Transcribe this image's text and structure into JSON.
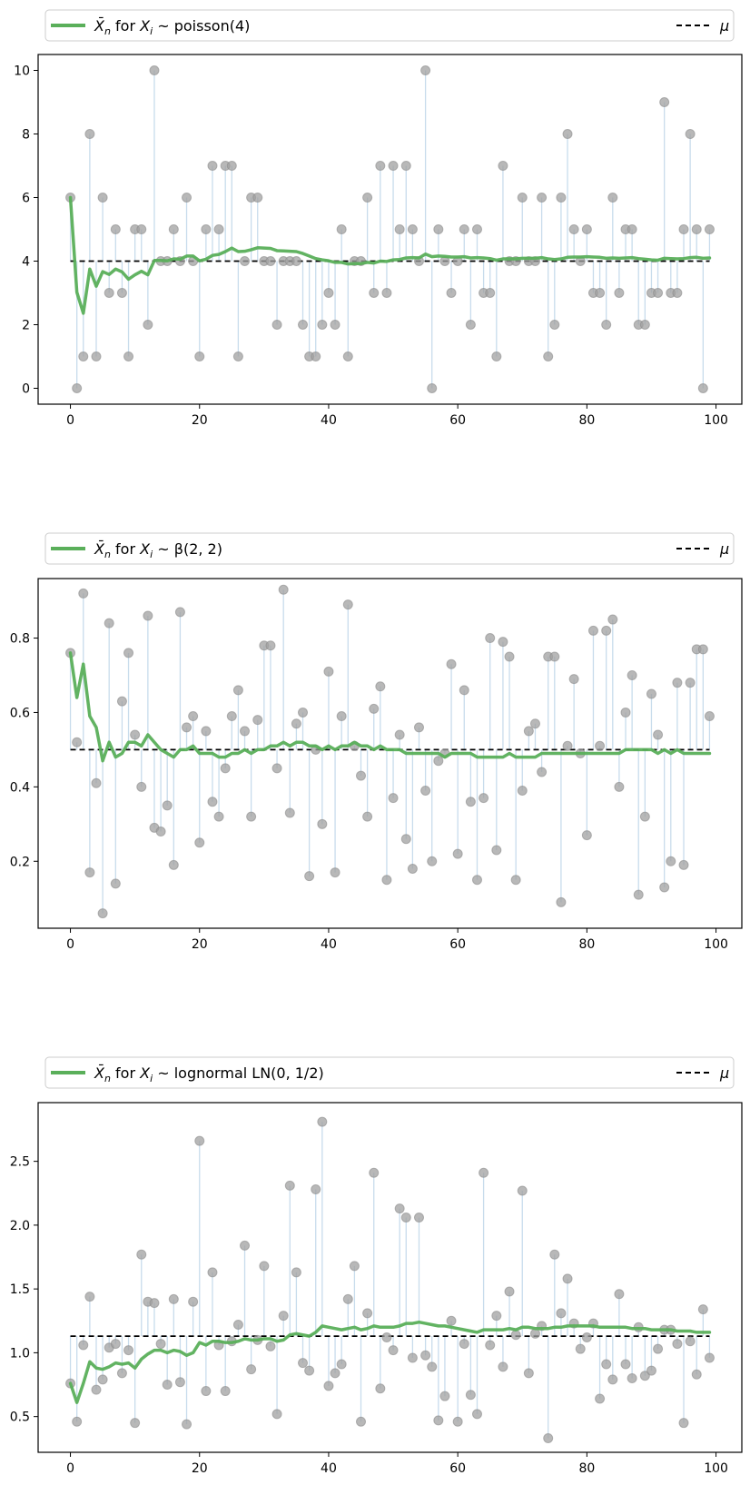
{
  "chart_data": [
    {
      "type": "scatter",
      "title": "",
      "xlabel": "",
      "ylabel": "",
      "legend": {
        "placement": "top",
        "entries": [
          {
            "name": "sample_mean",
            "math": "X̄",
            "sub": "n",
            "pre": " for ",
            "var": "X",
            "vsub": "i",
            "dist": "poisson(4)"
          },
          {
            "name": "mu",
            "label": "μ"
          }
        ]
      },
      "xlim": [
        -5,
        104
      ],
      "ylim": [
        -0.5,
        10.5
      ],
      "xticks": [
        0,
        20,
        40,
        60,
        80,
        100
      ],
      "yticks": [
        0,
        2,
        4,
        6,
        8,
        10
      ],
      "tick_format": 0,
      "mu": 4,
      "colors": {
        "mean_line": "#5aaf5a",
        "points": "#a0a0a0",
        "stems": "#c8dcec",
        "mu_line": "#000000"
      },
      "samples": [
        6,
        0,
        1,
        8,
        1,
        6,
        3,
        5,
        3,
        1,
        5,
        5,
        2,
        10,
        4,
        4,
        5,
        4,
        6,
        4,
        1,
        5,
        7,
        5,
        7,
        7,
        1,
        4,
        6,
        6,
        4,
        4,
        2,
        4,
        4,
        4,
        2,
        1,
        1,
        2,
        3,
        2,
        5,
        1,
        4,
        4,
        6,
        3,
        7,
        3,
        7,
        5,
        7,
        5,
        4,
        10,
        0,
        5,
        4,
        3,
        4,
        5,
        2,
        5,
        3,
        3,
        1,
        7,
        4,
        4,
        6,
        4,
        4,
        6,
        1,
        2,
        6,
        8,
        5,
        4,
        5,
        3,
        3,
        2,
        6,
        3,
        5,
        5,
        2,
        2,
        3,
        3,
        9,
        3,
        3,
        5,
        8,
        5,
        0,
        5
      ],
      "running_mean": [
        6,
        3.02,
        2.36,
        3.75,
        3.21,
        3.67,
        3.58,
        3.75,
        3.66,
        3.43,
        3.57,
        3.68,
        3.57,
        4.02,
        4.02,
        4.01,
        4.07,
        4.06,
        4.16,
        4.16,
        4.01,
        4.06,
        4.18,
        4.21,
        4.3,
        4.41,
        4.3,
        4.31,
        4.36,
        4.42,
        4.41,
        4.4,
        4.33,
        4.32,
        4.31,
        4.3,
        4.24,
        4.16,
        4.08,
        4.04,
        4.01,
        3.96,
        3.96,
        3.91,
        3.92,
        3.92,
        3.96,
        3.94,
        4.0,
        3.99,
        4.04,
        4.05,
        4.1,
        4.11,
        4.1,
        4.22,
        4.14,
        4.16,
        4.15,
        4.13,
        4.13,
        4.14,
        4.1,
        4.11,
        4.1,
        4.08,
        4.03,
        4.07,
        4.07,
        4.07,
        4.09,
        4.09,
        4.09,
        4.11,
        4.07,
        4.05,
        4.07,
        4.12,
        4.13,
        4.13,
        4.14,
        4.13,
        4.12,
        4.09,
        4.1,
        4.09,
        4.1,
        4.11,
        4.08,
        4.06,
        4.04,
        4.03,
        4.09,
        4.08,
        4.07,
        4.08,
        4.11,
        4.12,
        4.09,
        4.1
      ]
    },
    {
      "type": "scatter",
      "title": "",
      "xlabel": "",
      "ylabel": "",
      "legend": {
        "placement": "top",
        "entries": [
          {
            "name": "sample_mean",
            "math": "X̄",
            "sub": "n",
            "pre": " for ",
            "var": "X",
            "vsub": "i",
            "dist": "β(2, 2)"
          },
          {
            "name": "mu",
            "label": "μ"
          }
        ]
      },
      "xlim": [
        -5,
        104
      ],
      "ylim": [
        0.02,
        0.96
      ],
      "xticks": [
        0,
        20,
        40,
        60,
        80,
        100
      ],
      "yticks": [
        0.2,
        0.4,
        0.6,
        0.8
      ],
      "tick_format": 1,
      "mu": 0.5,
      "colors": {
        "mean_line": "#5aaf5a",
        "points": "#a0a0a0",
        "stems": "#c8dcec",
        "mu_line": "#000000"
      },
      "samples": [
        0.76,
        0.52,
        0.92,
        0.17,
        0.41,
        0.06,
        0.84,
        0.14,
        0.63,
        0.76,
        0.54,
        0.4,
        0.86,
        0.29,
        0.28,
        0.35,
        0.19,
        0.87,
        0.56,
        0.59,
        0.25,
        0.55,
        0.36,
        0.32,
        0.45,
        0.59,
        0.66,
        0.55,
        0.32,
        0.58,
        0.78,
        0.78,
        0.45,
        0.93,
        0.33,
        0.57,
        0.6,
        0.16,
        0.5,
        0.3,
        0.71,
        0.17,
        0.59,
        0.89,
        0.51,
        0.43,
        0.32,
        0.61,
        0.67,
        0.15,
        0.37,
        0.54,
        0.26,
        0.18,
        0.56,
        0.39,
        0.2,
        0.47,
        0.49,
        0.73,
        0.22,
        0.66,
        0.36,
        0.15,
        0.37,
        0.8,
        0.23,
        0.79,
        0.75,
        0.15,
        0.39,
        0.55,
        0.57,
        0.44,
        0.75,
        0.75,
        0.09,
        0.51,
        0.69,
        0.49,
        0.27,
        0.82,
        0.51,
        0.82,
        0.85,
        0.4,
        0.6,
        0.7,
        0.11,
        0.32,
        0.65,
        0.54,
        0.13,
        0.2,
        0.68,
        0.19,
        0.68,
        0.77,
        0.77,
        0.59
      ],
      "running_mean": [
        0.76,
        0.64,
        0.73,
        0.59,
        0.56,
        0.47,
        0.52,
        0.48,
        0.49,
        0.52,
        0.52,
        0.51,
        0.54,
        0.52,
        0.5,
        0.49,
        0.48,
        0.5,
        0.5,
        0.51,
        0.49,
        0.49,
        0.49,
        0.48,
        0.48,
        0.49,
        0.49,
        0.5,
        0.49,
        0.5,
        0.5,
        0.51,
        0.51,
        0.52,
        0.51,
        0.52,
        0.52,
        0.51,
        0.51,
        0.5,
        0.51,
        0.5,
        0.51,
        0.51,
        0.52,
        0.51,
        0.51,
        0.5,
        0.51,
        0.5,
        0.5,
        0.5,
        0.49,
        0.49,
        0.49,
        0.49,
        0.49,
        0.49,
        0.48,
        0.49,
        0.49,
        0.49,
        0.49,
        0.48,
        0.48,
        0.48,
        0.48,
        0.48,
        0.49,
        0.48,
        0.48,
        0.48,
        0.48,
        0.49,
        0.49,
        0.49,
        0.49,
        0.49,
        0.49,
        0.49,
        0.49,
        0.49,
        0.49,
        0.49,
        0.49,
        0.49,
        0.5,
        0.5,
        0.5,
        0.5,
        0.5,
        0.49,
        0.5,
        0.49,
        0.5,
        0.49,
        0.49,
        0.49,
        0.49,
        0.49
      ]
    },
    {
      "type": "scatter",
      "title": "",
      "xlabel": "",
      "ylabel": "",
      "legend": {
        "placement": "top",
        "entries": [
          {
            "name": "sample_mean",
            "math": "X̄",
            "sub": "n",
            "pre": " for ",
            "var": "X",
            "vsub": "i",
            "dist": "lognormal LN(0, 1/2)"
          },
          {
            "name": "mu",
            "label": "μ"
          }
        ]
      },
      "xlim": [
        -5,
        104
      ],
      "ylim": [
        0.22,
        2.96
      ],
      "xticks": [
        0,
        20,
        40,
        60,
        80,
        100
      ],
      "yticks": [
        0.5,
        1.0,
        1.5,
        2.0,
        2.5
      ],
      "tick_format": 1,
      "mu": 1.13,
      "colors": {
        "mean_line": "#5aaf5a",
        "points": "#a0a0a0",
        "stems": "#c8dcec",
        "mu_line": "#000000"
      },
      "samples": [
        0.76,
        0.46,
        1.06,
        1.44,
        0.71,
        0.79,
        1.04,
        1.07,
        0.84,
        1.02,
        0.45,
        1.77,
        1.4,
        1.39,
        1.07,
        0.75,
        1.42,
        0.77,
        0.44,
        1.4,
        2.66,
        0.7,
        1.63,
        1.06,
        0.7,
        1.09,
        1.22,
        1.84,
        0.87,
        1.1,
        1.68,
        1.05,
        0.52,
        1.29,
        2.31,
        1.63,
        0.92,
        0.86,
        2.28,
        2.81,
        0.74,
        0.84,
        0.91,
        1.42,
        1.68,
        0.46,
        1.31,
        2.41,
        0.72,
        1.12,
        1.02,
        2.13,
        2.06,
        0.96,
        2.06,
        0.98,
        0.89,
        0.47,
        0.66,
        1.25,
        0.46,
        1.07,
        0.67,
        0.52,
        2.41,
        1.06,
        1.29,
        0.89,
        1.48,
        1.14,
        2.27,
        0.84,
        1.15,
        1.21,
        0.33,
        1.77,
        1.31,
        1.58,
        1.23,
        1.03,
        1.12,
        1.23,
        0.64,
        0.91,
        0.79,
        1.46,
        0.91,
        0.8,
        1.2,
        0.82,
        0.86,
        1.03,
        1.18,
        1.18,
        1.07,
        0.45,
        1.09,
        0.83,
        1.34,
        0.96
      ],
      "running_mean": [
        0.76,
        0.61,
        0.76,
        0.93,
        0.88,
        0.87,
        0.89,
        0.92,
        0.91,
        0.92,
        0.88,
        0.95,
        0.99,
        1.02,
        1.02,
        1.0,
        1.02,
        1.01,
        0.98,
        1.0,
        1.08,
        1.06,
        1.09,
        1.09,
        1.08,
        1.08,
        1.09,
        1.11,
        1.1,
        1.1,
        1.11,
        1.11,
        1.09,
        1.1,
        1.14,
        1.15,
        1.14,
        1.13,
        1.16,
        1.21,
        1.2,
        1.19,
        1.18,
        1.19,
        1.2,
        1.18,
        1.19,
        1.21,
        1.2,
        1.2,
        1.2,
        1.21,
        1.23,
        1.23,
        1.24,
        1.23,
        1.22,
        1.21,
        1.21,
        1.2,
        1.19,
        1.18,
        1.17,
        1.16,
        1.18,
        1.18,
        1.18,
        1.18,
        1.19,
        1.18,
        1.2,
        1.2,
        1.19,
        1.19,
        1.19,
        1.2,
        1.2,
        1.21,
        1.21,
        1.21,
        1.21,
        1.21,
        1.2,
        1.2,
        1.2,
        1.2,
        1.2,
        1.19,
        1.19,
        1.19,
        1.18,
        1.18,
        1.18,
        1.18,
        1.17,
        1.17,
        1.17,
        1.16,
        1.16,
        1.16
      ]
    }
  ]
}
